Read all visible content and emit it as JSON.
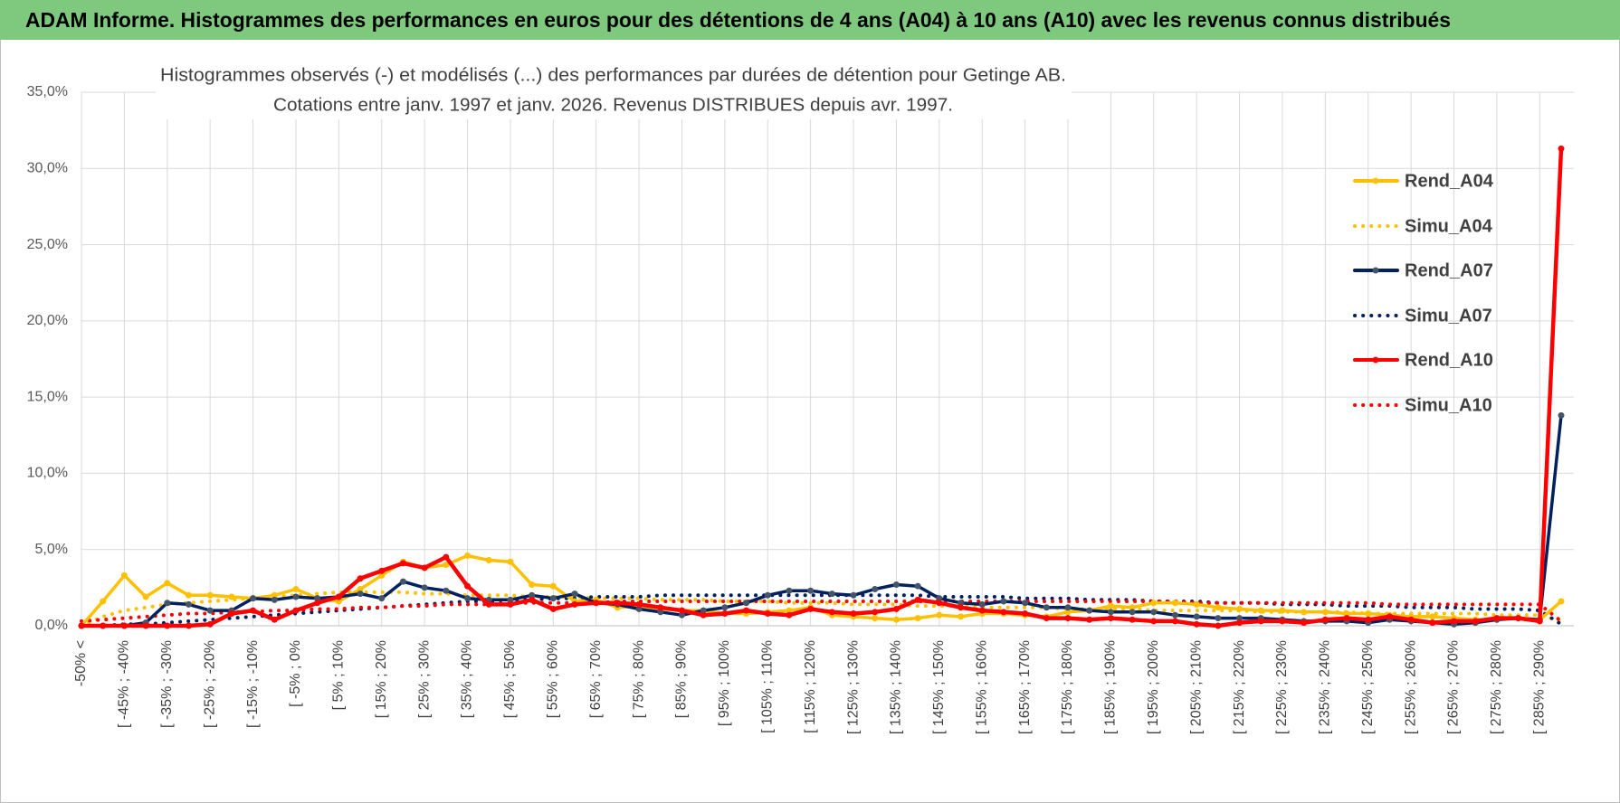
{
  "header": {
    "title": "ADAM Informe. Histogrammes des performances en euros pour des détentions de 4 ans (A04) à 10 ans (A10) avec les revenus connus distribués"
  },
  "chart_data": {
    "type": "line",
    "title": "Histogrammes observés (-) et modélisés (...) des performances par durées de détention pour Getinge AB.",
    "subtitle": "Cotations entre janv. 1997 et janv. 2026. Revenus DISTRIBUES depuis avr. 1997.",
    "categories": [
      "-50% <",
      null,
      "[ -45% ; -40%",
      null,
      "[ -35% ; -30%",
      null,
      "[ -25% ; -20%",
      null,
      "[ -15% ; -10%",
      null,
      "[ -5% ; 0%",
      null,
      "[ 5% ; 10%",
      null,
      "[ 15% ; 20%",
      null,
      "[ 25% ; 30%",
      null,
      "[ 35% ; 40%",
      null,
      "[ 45% ; 50%",
      null,
      "[ 55% ; 60%",
      null,
      "[ 65% ; 70%",
      null,
      "[ 75% ; 80%",
      null,
      "[ 85% ; 90%",
      null,
      "[ 95% ; 100%",
      null,
      "[ 105% ; 110%",
      null,
      "[ 115% ; 120%",
      null,
      "[ 125% ; 130%",
      null,
      "[ 135% ; 140%",
      null,
      "[ 145% ; 150%",
      null,
      "[ 155% ; 160%",
      null,
      "[ 165% ; 170%",
      null,
      "[ 175% ; 180%",
      null,
      "[ 185% ; 190%",
      null,
      "[ 195% ; 200%",
      null,
      "[ 205% ; 210%",
      null,
      "[ 215% ; 220%",
      null,
      "[ 225% ; 230%",
      null,
      "[ 235% ; 240%",
      null,
      "[ 245% ; 250%",
      null,
      "[ 255% ; 260%",
      null,
      "[ 265% ; 270%",
      null,
      "[ 275% ; 280%",
      null,
      "[ 285% ; 290%",
      null
    ],
    "series": [
      {
        "name": "Rend_A04",
        "color": "#ffc000",
        "dash": "solid",
        "markers": true,
        "values": [
          0,
          1.6,
          3.3,
          1.9,
          2.8,
          2.0,
          2.0,
          1.9,
          1.8,
          2.0,
          2.4,
          1.8,
          1.6,
          2.4,
          3.3,
          4.2,
          3.8,
          4.0,
          4.6,
          4.3,
          4.2,
          2.7,
          2.6,
          1.6,
          1.7,
          1.2,
          1.3,
          1.1,
          1.0,
          1.0,
          0.8,
          0.8,
          0.9,
          1.0,
          1.2,
          0.7,
          0.6,
          0.5,
          0.4,
          0.5,
          0.7,
          0.6,
          0.8,
          0.8,
          0.7,
          0.6,
          0.9,
          1.0,
          1.3,
          1.2,
          1.5,
          1.5,
          1.4,
          1.2,
          1.1,
          1.0,
          1.0,
          0.9,
          0.9,
          0.8,
          0.8,
          0.7,
          0.6,
          0.6,
          0.5,
          0.4,
          0.4,
          0.5,
          0.4,
          1.6
        ]
      },
      {
        "name": "Simu_A04",
        "color": "#ffc000",
        "dash": "dotted",
        "markers": false,
        "values": [
          0,
          0.6,
          1.0,
          1.2,
          1.4,
          1.5,
          1.6,
          1.7,
          1.8,
          1.9,
          2.0,
          2.1,
          2.2,
          2.2,
          2.2,
          2.2,
          2.1,
          2.1,
          2.0,
          2.0,
          2.0,
          1.9,
          1.9,
          1.9,
          1.8,
          1.8,
          1.8,
          1.7,
          1.7,
          1.7,
          1.6,
          1.6,
          1.6,
          1.5,
          1.5,
          1.5,
          1.4,
          1.4,
          1.4,
          1.3,
          1.3,
          1.3,
          1.2,
          1.2,
          1.2,
          1.2,
          1.1,
          1.1,
          1.1,
          1.1,
          1.0,
          1.0,
          1.0,
          1.0,
          1.0,
          0.9,
          0.9,
          0.9,
          0.9,
          0.9,
          0.8,
          0.8,
          0.8,
          0.8,
          0.8,
          0.8,
          0.7,
          0.7,
          0.7,
          0.3
        ]
      },
      {
        "name": "Rend_A07",
        "color": "#002060",
        "dash": "solid",
        "markers": true,
        "values": [
          0,
          0,
          0,
          0.2,
          1.5,
          1.4,
          1.0,
          1.0,
          1.8,
          1.7,
          1.9,
          1.8,
          1.9,
          2.1,
          1.8,
          2.9,
          2.5,
          2.3,
          1.8,
          1.7,
          1.7,
          2.0,
          1.8,
          2.1,
          1.5,
          1.4,
          1.1,
          0.9,
          0.7,
          1.0,
          1.2,
          1.5,
          2.0,
          2.3,
          2.3,
          2.1,
          2.0,
          2.4,
          2.7,
          2.6,
          1.8,
          1.5,
          1.4,
          1.6,
          1.5,
          1.2,
          1.2,
          1.0,
          0.9,
          0.9,
          0.9,
          0.7,
          0.6,
          0.5,
          0.5,
          0.5,
          0.4,
          0.3,
          0.3,
          0.3,
          0.2,
          0.4,
          0.3,
          0.2,
          0.1,
          0.2,
          0.4,
          0.5,
          0.4,
          13.8
        ]
      },
      {
        "name": "Simu_A07",
        "color": "#002060",
        "dash": "dotted",
        "markers": false,
        "values": [
          0,
          0,
          0.1,
          0.1,
          0.2,
          0.3,
          0.4,
          0.5,
          0.6,
          0.7,
          0.8,
          0.9,
          1.0,
          1.1,
          1.2,
          1.3,
          1.4,
          1.5,
          1.6,
          1.6,
          1.7,
          1.7,
          1.8,
          1.8,
          1.9,
          1.9,
          1.9,
          2.0,
          2.0,
          2.0,
          2.0,
          2.0,
          2.0,
          2.0,
          2.0,
          2.0,
          2.0,
          2.0,
          2.0,
          2.0,
          1.9,
          1.9,
          1.9,
          1.9,
          1.8,
          1.8,
          1.8,
          1.7,
          1.7,
          1.7,
          1.6,
          1.6,
          1.6,
          1.5,
          1.5,
          1.5,
          1.4,
          1.4,
          1.4,
          1.3,
          1.3,
          1.3,
          1.2,
          1.2,
          1.2,
          1.1,
          1.1,
          1.1,
          1.0,
          0.1
        ]
      },
      {
        "name": "Rend_A10",
        "color": "#ff0000",
        "dash": "solid",
        "markers": true,
        "values": [
          0,
          0,
          0,
          0,
          0,
          0,
          0.1,
          0.8,
          1.0,
          0.4,
          1.0,
          1.5,
          1.9,
          3.1,
          3.6,
          4.1,
          3.8,
          4.5,
          2.6,
          1.4,
          1.4,
          1.7,
          1.1,
          1.4,
          1.5,
          1.5,
          1.4,
          1.2,
          1.0,
          0.7,
          0.8,
          1.0,
          0.8,
          0.7,
          1.1,
          0.9,
          0.8,
          0.9,
          1.1,
          1.7,
          1.5,
          1.2,
          1.0,
          0.9,
          0.8,
          0.5,
          0.5,
          0.4,
          0.5,
          0.4,
          0.3,
          0.3,
          0.1,
          0.0,
          0.2,
          0.3,
          0.3,
          0.2,
          0.4,
          0.5,
          0.4,
          0.6,
          0.4,
          0.2,
          0.3,
          0.3,
          0.5,
          0.5,
          0.3,
          31.3
        ]
      },
      {
        "name": "Simu_A10",
        "color": "#ff0000",
        "dash": "dotted",
        "markers": false,
        "values": [
          0.3,
          0.4,
          0.5,
          0.6,
          0.7,
          0.8,
          0.8,
          0.9,
          0.9,
          1.0,
          1.0,
          1.1,
          1.1,
          1.2,
          1.2,
          1.3,
          1.3,
          1.4,
          1.4,
          1.4,
          1.5,
          1.5,
          1.5,
          1.5,
          1.5,
          1.6,
          1.6,
          1.6,
          1.6,
          1.6,
          1.6,
          1.6,
          1.6,
          1.6,
          1.6,
          1.6,
          1.6,
          1.6,
          1.6,
          1.6,
          1.6,
          1.6,
          1.6,
          1.6,
          1.6,
          1.6,
          1.6,
          1.6,
          1.6,
          1.6,
          1.6,
          1.6,
          1.5,
          1.5,
          1.5,
          1.5,
          1.5,
          1.5,
          1.5,
          1.5,
          1.5,
          1.4,
          1.4,
          1.4,
          1.4,
          1.4,
          1.4,
          1.4,
          1.4,
          0.3
        ]
      }
    ],
    "ylim": [
      0,
      35
    ],
    "yticks": [
      {
        "value": 0,
        "label": "0,0%"
      },
      {
        "value": 5,
        "label": "5,0%"
      },
      {
        "value": 10,
        "label": "10,0%"
      },
      {
        "value": 15,
        "label": "15,0%"
      },
      {
        "value": 20,
        "label": "20,0%"
      },
      {
        "value": 25,
        "label": "25,0%"
      },
      {
        "value": 30,
        "label": "30,0%"
      },
      {
        "value": 35,
        "label": "35,0%"
      }
    ],
    "grid": true,
    "legend": "right"
  }
}
